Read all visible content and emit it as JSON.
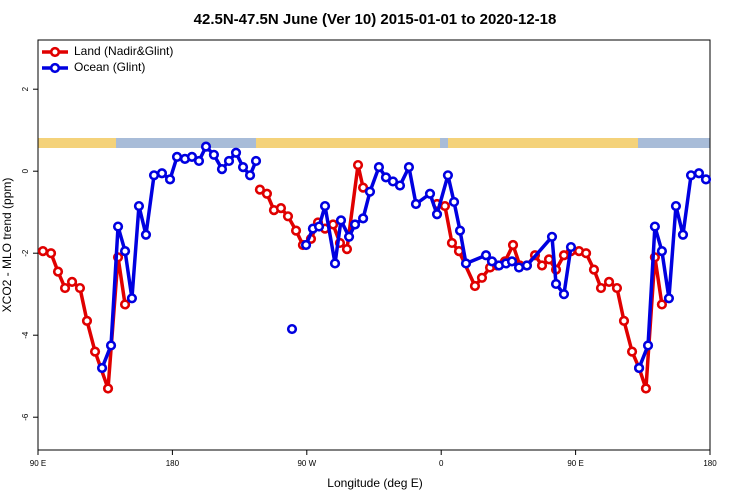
{
  "chart_data": {
    "type": "line",
    "title": "42.5N-47.5N June (Ver 10)   2015-01-01 to 2020-12-18",
    "x_label": "Longitude (deg E)",
    "y_label": "XCO2 - MLO trend (ppm)",
    "xlim": [
      90,
      540
    ],
    "ylim": [
      -6.8,
      3.2
    ],
    "xticks": [
      {
        "value": 90,
        "label": "90 E"
      },
      180,
      {
        "value": 270,
        "label": "90 W"
      },
      {
        "value": 360,
        "label": "0"
      },
      {
        "value": 450,
        "label": "90 E"
      },
      {
        "value": 540,
        "label": "180"
      }
    ],
    "yticks": [
      -6,
      -4,
      -2,
      0,
      2
    ],
    "legend": "top-left",
    "series": [
      {
        "name": "Land (Nadir&Glint)",
        "color": "#e00000",
        "x": [
          93.3,
          98.7,
          103.4,
          108.1,
          112.8,
          118.1,
          122.8,
          128.2,
          136.9,
          143.6,
          148.3,
          null,
          238.6,
          243.3,
          248.0,
          252.7,
          257.4,
          262.8,
          267.4,
          272.8,
          277.5,
          282.2,
          287.6,
          292.2,
          296.9,
          304.3,
          307.7,
          null,
          357.2,
          362.5,
          367.2,
          371.9,
          382.6,
          387.3,
          392.7,
          397.3,
          402.7,
          408.1,
          412.7,
          417.4,
          422.8,
          427.5,
          432.2,
          436.9,
          442.2,
          446.9,
          452.3,
          457.0,
          462.3,
          467.0,
          472.4,
          477.7,
          482.4,
          487.8,
          492.5,
          497.1,
          503.1,
          507.8
        ],
        "values": [
          -1.95,
          -2.0,
          -2.45,
          -2.85,
          -2.7,
          -2.85,
          -3.65,
          -4.4,
          -5.3,
          -2.1,
          -3.25,
          null,
          -0.45,
          -0.55,
          -0.95,
          -0.9,
          -1.1,
          -1.45,
          -1.8,
          -1.65,
          -1.25,
          -1.4,
          -1.3,
          -1.75,
          -1.9,
          0.15,
          -0.4,
          null,
          -0.8,
          -0.85,
          -1.75,
          -1.95,
          -2.8,
          -2.6,
          -2.35,
          -2.3,
          -2.2,
          -1.8,
          -2.3,
          -2.3,
          -2.05,
          -2.3,
          -2.15,
          -2.4,
          -2.05,
          -1.95,
          -1.95,
          -2.0,
          -2.4,
          -2.85,
          -2.7,
          -2.85,
          -3.65,
          -4.4,
          -4.8,
          -5.3,
          -2.1,
          -3.25
        ]
      },
      {
        "name": "Ocean (Glint)",
        "color": "#0000e0",
        "x": [
          132.9,
          138.9,
          143.6,
          148.3,
          152.9,
          157.6,
          162.3,
          167.7,
          173.0,
          178.4,
          183.1,
          188.4,
          193.1,
          197.8,
          202.5,
          207.8,
          213.2,
          217.9,
          222.6,
          227.3,
          232.0,
          236.0,
          null,
          260.1,
          null,
          269.5,
          274.1,
          278.2,
          282.2,
          288.9,
          292.9,
          298.3,
          302.3,
          307.7,
          312.3,
          318.3,
          323.0,
          327.7,
          332.4,
          338.4,
          343.1,
          352.5,
          357.2,
          364.5,
          368.6,
          372.6,
          376.6,
          390.0,
          394.0,
          398.7,
          403.4,
          407.4,
          412.1,
          417.4,
          434.2,
          436.9,
          442.2,
          446.9,
          null,
          492.5,
          498.5,
          503.1,
          507.8,
          512.5,
          517.2,
          521.9,
          527.3,
          532.6,
          537.3
        ],
        "values": [
          -4.8,
          -4.25,
          -1.35,
          -1.95,
          -3.1,
          -0.85,
          -1.55,
          -0.1,
          -0.05,
          -0.2,
          0.35,
          0.3,
          0.35,
          0.25,
          0.6,
          0.4,
          0.05,
          0.25,
          0.45,
          0.1,
          -0.1,
          0.25,
          null,
          -3.85,
          null,
          -1.8,
          -1.4,
          -1.35,
          -0.85,
          -2.25,
          -1.2,
          -1.6,
          -1.3,
          -1.15,
          -0.5,
          0.1,
          -0.15,
          -0.25,
          -0.35,
          0.1,
          -0.8,
          -0.55,
          -1.05,
          -0.1,
          -0.75,
          -1.45,
          -2.25,
          -2.05,
          -2.2,
          -2.3,
          -2.25,
          -2.2,
          -2.35,
          -2.3,
          -1.6,
          -2.75,
          -3.0,
          -1.85,
          null,
          -4.8,
          -4.25,
          -1.35,
          -1.95,
          -3.1,
          -0.85,
          -1.55,
          -0.1,
          -0.05,
          -0.2
        ]
      }
    ]
  }
}
